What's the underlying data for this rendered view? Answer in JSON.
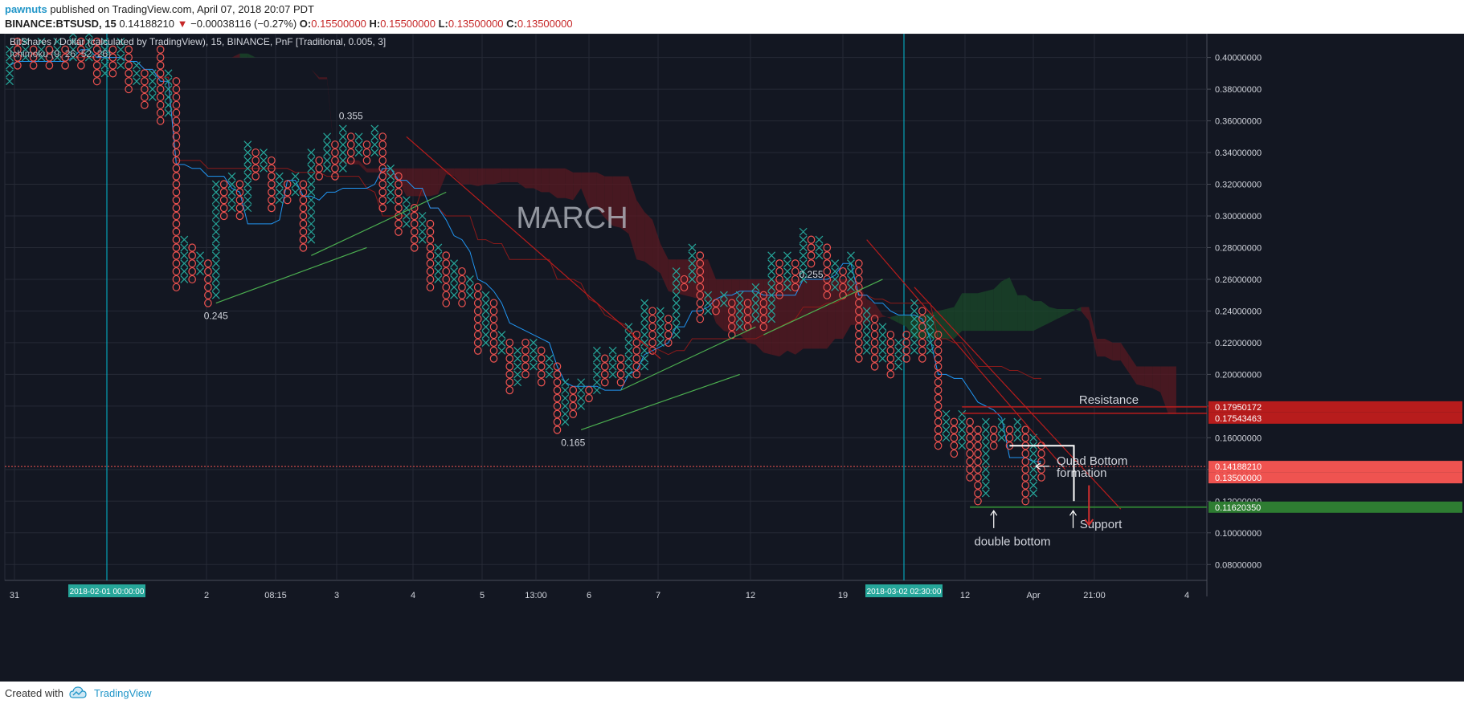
{
  "header": {
    "author": "pawnuts",
    "published": "published on TradingView.com, April 07, 2018 20:07 PDT",
    "symbol": "BINANCE:BTSUSD, 15",
    "last": "0.14188210",
    "arrow": "▼",
    "change": "−0.00038116 (−0.27%)",
    "o_label": "O:",
    "o": "0.15500000",
    "h_label": "H:",
    "h": "0.15500000",
    "l_label": "L:",
    "l": "0.13500000",
    "c_label": "C:",
    "c": "0.13500000"
  },
  "legend": {
    "line1": "BitShares / Dollar (calculated by TradingView), 15, BINANCE, PnF [Traditional, 0.005, 3]",
    "line2": "Ichimoku (9, 26, 52, 26)"
  },
  "watermark": "MARCH",
  "footer": {
    "created_with": "Created with",
    "brand": "TradingView"
  },
  "colors": {
    "background": "#131722",
    "x_color": "#26a69a",
    "o_color": "#ef5350",
    "conversion_line": "#2196f3",
    "base_line": "#8b1a1a",
    "cloud_bear": "#5a1a22",
    "cloud_bull": "#1b4a2a",
    "trendline_up": "#4caf50",
    "trendline_down": "#b71c1c",
    "support_line": "#2e7d32",
    "resistance_line": "#b71c1c",
    "session_line": "#00bcd4"
  },
  "chart_data": {
    "type": "point-and-figure",
    "box_size": 0.005,
    "reversal": 3,
    "ylim": [
      0.07,
      0.415
    ],
    "y_ticks": [
      "0.08000000",
      "0.10000000",
      "0.12000000",
      "0.14000000",
      "0.16000000",
      "0.18000000",
      "0.20000000",
      "0.22000000",
      "0.24000000",
      "0.26000000",
      "0.28000000",
      "0.30000000",
      "0.32000000",
      "0.34000000",
      "0.36000000",
      "0.38000000",
      "0.40000000"
    ],
    "x_ticks": [
      "31",
      "2",
      "08:15",
      "3",
      "4",
      "5",
      "13:00",
      "6",
      "7",
      "12",
      "19",
      "12",
      "Apr",
      "21:00",
      "4"
    ],
    "x_highlights": [
      "2018-02-01 00:00:00",
      "2018-03-02 02:30:00"
    ],
    "price_labels": [
      {
        "value": "0.17950172",
        "type": "resistance"
      },
      {
        "value": "0.17543463",
        "type": "resistance"
      },
      {
        "value": "0.14188210",
        "type": "last"
      },
      {
        "value": "0.13500000",
        "type": "close"
      },
      {
        "value": "0.11620350",
        "type": "support"
      }
    ],
    "columns": [
      {
        "t": "X",
        "lo": 0.385,
        "hi": 0.405
      },
      {
        "t": "O",
        "lo": 0.395,
        "hi": 0.41
      },
      {
        "t": "X",
        "lo": 0.4,
        "hi": 0.41
      },
      {
        "t": "O",
        "lo": 0.395,
        "hi": 0.405
      },
      {
        "t": "X",
        "lo": 0.4,
        "hi": 0.41
      },
      {
        "t": "O",
        "lo": 0.395,
        "hi": 0.405
      },
      {
        "t": "X",
        "lo": 0.4,
        "hi": 0.41
      },
      {
        "t": "O",
        "lo": 0.395,
        "hi": 0.405
      },
      {
        "t": "X",
        "lo": 0.4,
        "hi": 0.415
      },
      {
        "t": "O",
        "lo": 0.395,
        "hi": 0.41
      },
      {
        "t": "X",
        "lo": 0.4,
        "hi": 0.415
      },
      {
        "t": "O",
        "lo": 0.385,
        "hi": 0.41
      },
      {
        "t": "X",
        "lo": 0.39,
        "hi": 0.41
      },
      {
        "t": "O",
        "lo": 0.39,
        "hi": 0.405
      },
      {
        "t": "X",
        "lo": 0.395,
        "hi": 0.41
      },
      {
        "t": "O",
        "lo": 0.38,
        "hi": 0.405
      },
      {
        "t": "X",
        "lo": 0.385,
        "hi": 0.395
      },
      {
        "t": "O",
        "lo": 0.37,
        "hi": 0.39
      },
      {
        "t": "X",
        "lo": 0.375,
        "hi": 0.39
      },
      {
        "t": "O",
        "lo": 0.36,
        "hi": 0.405
      },
      {
        "t": "X",
        "lo": 0.365,
        "hi": 0.39
      },
      {
        "t": "O",
        "lo": 0.255,
        "hi": 0.385
      },
      {
        "t": "X",
        "lo": 0.26,
        "hi": 0.285
      },
      {
        "t": "O",
        "lo": 0.26,
        "hi": 0.28
      },
      {
        "t": "X",
        "lo": 0.265,
        "hi": 0.275
      },
      {
        "t": "O",
        "lo": 0.245,
        "hi": 0.27
      },
      {
        "t": "X",
        "lo": 0.25,
        "hi": 0.32
      },
      {
        "t": "O",
        "lo": 0.3,
        "hi": 0.32
      },
      {
        "t": "X",
        "lo": 0.305,
        "hi": 0.325
      },
      {
        "t": "O",
        "lo": 0.3,
        "hi": 0.32
      },
      {
        "t": "X",
        "lo": 0.305,
        "hi": 0.345
      },
      {
        "t": "O",
        "lo": 0.325,
        "hi": 0.34
      },
      {
        "t": "X",
        "lo": 0.33,
        "hi": 0.34
      },
      {
        "t": "O",
        "lo": 0.305,
        "hi": 0.335
      },
      {
        "t": "X",
        "lo": 0.31,
        "hi": 0.325
      },
      {
        "t": "O",
        "lo": 0.31,
        "hi": 0.32
      },
      {
        "t": "X",
        "lo": 0.315,
        "hi": 0.325
      },
      {
        "t": "O",
        "lo": 0.28,
        "hi": 0.32
      },
      {
        "t": "X",
        "lo": 0.285,
        "hi": 0.34
      },
      {
        "t": "O",
        "lo": 0.325,
        "hi": 0.335
      },
      {
        "t": "X",
        "lo": 0.33,
        "hi": 0.35
      },
      {
        "t": "O",
        "lo": 0.325,
        "hi": 0.345
      },
      {
        "t": "X",
        "lo": 0.33,
        "hi": 0.355
      },
      {
        "t": "O",
        "lo": 0.335,
        "hi": 0.35
      },
      {
        "t": "X",
        "lo": 0.34,
        "hi": 0.35
      },
      {
        "t": "O",
        "lo": 0.335,
        "hi": 0.345
      },
      {
        "t": "X",
        "lo": 0.34,
        "hi": 0.355
      },
      {
        "t": "O",
        "lo": 0.305,
        "hi": 0.35
      },
      {
        "t": "X",
        "lo": 0.31,
        "hi": 0.33
      },
      {
        "t": "O",
        "lo": 0.29,
        "hi": 0.325
      },
      {
        "t": "X",
        "lo": 0.295,
        "hi": 0.31
      },
      {
        "t": "O",
        "lo": 0.28,
        "hi": 0.305
      },
      {
        "t": "X",
        "lo": 0.285,
        "hi": 0.3
      },
      {
        "t": "O",
        "lo": 0.255,
        "hi": 0.295
      },
      {
        "t": "X",
        "lo": 0.26,
        "hi": 0.28
      },
      {
        "t": "O",
        "lo": 0.245,
        "hi": 0.275
      },
      {
        "t": "X",
        "lo": 0.25,
        "hi": 0.27
      },
      {
        "t": "O",
        "lo": 0.245,
        "hi": 0.265
      },
      {
        "t": "X",
        "lo": 0.25,
        "hi": 0.26
      },
      {
        "t": "O",
        "lo": 0.215,
        "hi": 0.255
      },
      {
        "t": "X",
        "lo": 0.22,
        "hi": 0.25
      },
      {
        "t": "O",
        "lo": 0.21,
        "hi": 0.245
      },
      {
        "t": "X",
        "lo": 0.215,
        "hi": 0.225
      },
      {
        "t": "O",
        "lo": 0.19,
        "hi": 0.22
      },
      {
        "t": "X",
        "lo": 0.195,
        "hi": 0.215
      },
      {
        "t": "O",
        "lo": 0.2,
        "hi": 0.22
      },
      {
        "t": "X",
        "lo": 0.205,
        "hi": 0.22
      },
      {
        "t": "O",
        "lo": 0.195,
        "hi": 0.215
      },
      {
        "t": "X",
        "lo": 0.2,
        "hi": 0.21
      },
      {
        "t": "O",
        "lo": 0.165,
        "hi": 0.205
      },
      {
        "t": "X",
        "lo": 0.17,
        "hi": 0.195
      },
      {
        "t": "O",
        "lo": 0.175,
        "hi": 0.19
      },
      {
        "t": "X",
        "lo": 0.18,
        "hi": 0.195
      },
      {
        "t": "O",
        "lo": 0.185,
        "hi": 0.19
      },
      {
        "t": "X",
        "lo": 0.19,
        "hi": 0.215
      },
      {
        "t": "O",
        "lo": 0.195,
        "hi": 0.21
      },
      {
        "t": "X",
        "lo": 0.2,
        "hi": 0.215
      },
      {
        "t": "O",
        "lo": 0.195,
        "hi": 0.21
      },
      {
        "t": "X",
        "lo": 0.2,
        "hi": 0.23
      },
      {
        "t": "O",
        "lo": 0.2,
        "hi": 0.225
      },
      {
        "t": "X",
        "lo": 0.205,
        "hi": 0.245
      },
      {
        "t": "O",
        "lo": 0.215,
        "hi": 0.24
      },
      {
        "t": "X",
        "lo": 0.22,
        "hi": 0.24
      },
      {
        "t": "O",
        "lo": 0.22,
        "hi": 0.235
      },
      {
        "t": "X",
        "lo": 0.225,
        "hi": 0.265
      },
      {
        "t": "O",
        "lo": 0.255,
        "hi": 0.26
      },
      {
        "t": "X",
        "lo": 0.26,
        "hi": 0.28
      },
      {
        "t": "O",
        "lo": 0.235,
        "hi": 0.275
      },
      {
        "t": "X",
        "lo": 0.24,
        "hi": 0.25
      },
      {
        "t": "O",
        "lo": 0.24,
        "hi": 0.245
      },
      {
        "t": "X",
        "lo": 0.245,
        "hi": 0.25
      },
      {
        "t": "O",
        "lo": 0.225,
        "hi": 0.245
      },
      {
        "t": "X",
        "lo": 0.23,
        "hi": 0.25
      },
      {
        "t": "O",
        "lo": 0.23,
        "hi": 0.245
      },
      {
        "t": "X",
        "lo": 0.235,
        "hi": 0.255
      },
      {
        "t": "O",
        "lo": 0.23,
        "hi": 0.25
      },
      {
        "t": "X",
        "lo": 0.235,
        "hi": 0.275
      },
      {
        "t": "O",
        "lo": 0.25,
        "hi": 0.27
      },
      {
        "t": "X",
        "lo": 0.255,
        "hi": 0.275
      },
      {
        "t": "O",
        "lo": 0.255,
        "hi": 0.27
      },
      {
        "t": "X",
        "lo": 0.26,
        "hi": 0.29
      },
      {
        "t": "O",
        "lo": 0.27,
        "hi": 0.285
      },
      {
        "t": "X",
        "lo": 0.275,
        "hi": 0.285
      },
      {
        "t": "O",
        "lo": 0.25,
        "hi": 0.28
      },
      {
        "t": "X",
        "lo": 0.255,
        "hi": 0.27
      },
      {
        "t": "O",
        "lo": 0.25,
        "hi": 0.265
      },
      {
        "t": "X",
        "lo": 0.255,
        "hi": 0.275
      },
      {
        "t": "O",
        "lo": 0.21,
        "hi": 0.27
      },
      {
        "t": "X",
        "lo": 0.215,
        "hi": 0.24
      },
      {
        "t": "O",
        "lo": 0.205,
        "hi": 0.235
      },
      {
        "t": "X",
        "lo": 0.21,
        "hi": 0.23
      },
      {
        "t": "O",
        "lo": 0.2,
        "hi": 0.225
      },
      {
        "t": "X",
        "lo": 0.205,
        "hi": 0.22
      },
      {
        "t": "O",
        "lo": 0.21,
        "hi": 0.225
      },
      {
        "t": "X",
        "lo": 0.215,
        "hi": 0.245
      },
      {
        "t": "O",
        "lo": 0.21,
        "hi": 0.24
      },
      {
        "t": "X",
        "lo": 0.215,
        "hi": 0.235
      },
      {
        "t": "O",
        "lo": 0.155,
        "hi": 0.225
      },
      {
        "t": "X",
        "lo": 0.16,
        "hi": 0.175
      },
      {
        "t": "O",
        "lo": 0.15,
        "hi": 0.17
      },
      {
        "t": "X",
        "lo": 0.155,
        "hi": 0.175
      },
      {
        "t": "O",
        "lo": 0.135,
        "hi": 0.17
      },
      {
        "t": "O",
        "lo": 0.12,
        "hi": 0.165
      },
      {
        "t": "X",
        "lo": 0.125,
        "hi": 0.17
      },
      {
        "t": "O",
        "lo": 0.155,
        "hi": 0.165
      },
      {
        "t": "X",
        "lo": 0.16,
        "hi": 0.17
      },
      {
        "t": "O",
        "lo": 0.155,
        "hi": 0.165
      },
      {
        "t": "X",
        "lo": 0.16,
        "hi": 0.17
      },
      {
        "t": "O",
        "lo": 0.12,
        "hi": 0.165
      },
      {
        "t": "X",
        "lo": 0.125,
        "hi": 0.16
      },
      {
        "t": "O",
        "lo": 0.135,
        "hi": 0.155
      }
    ],
    "annotations": {
      "level_labels": [
        {
          "text": "0.245",
          "value": 0.245
        },
        {
          "text": "0.355",
          "value": 0.355
        },
        {
          "text": "0.165",
          "value": 0.165
        },
        {
          "text": "0.255",
          "value": 0.255
        }
      ],
      "resistance": "Resistance",
      "quad_bottom_line1": "Quad Bottom",
      "quad_bottom_line2": "formation",
      "support": "Support",
      "double_bottom": "double bottom"
    }
  }
}
